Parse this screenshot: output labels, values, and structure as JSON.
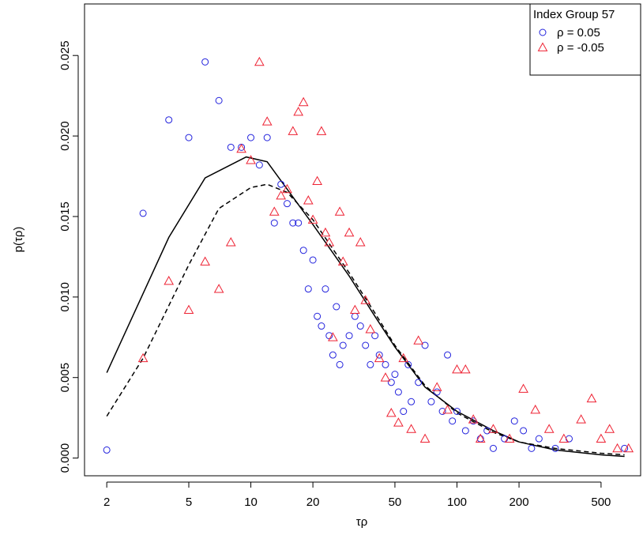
{
  "chart_data": {
    "type": "scatter",
    "x_label": "τρ",
    "y_label": "p(τρ)",
    "xscale": "log",
    "xlim": [
      1.56,
      778
    ],
    "ylim": [
      -0.0011,
      0.0282
    ],
    "xticks": [
      2,
      5,
      10,
      20,
      50,
      100,
      200,
      500
    ],
    "yticks": [
      {
        "value": 0,
        "label": "0.000"
      },
      {
        "value": 0.005,
        "label": "0.005"
      },
      {
        "value": 0.01,
        "label": "0.010"
      },
      {
        "value": 0.015,
        "label": "0.015"
      },
      {
        "value": 0.02,
        "label": "0.020"
      },
      {
        "value": 0.025,
        "label": "0.025"
      }
    ],
    "legend_title": "Index Group 57",
    "legend_position": "top-right",
    "series": [
      {
        "name": "ρ = 0.05",
        "color": "#2222dd",
        "marker": "circle",
        "x": [
          2,
          3,
          4,
          5,
          6,
          7,
          8,
          9,
          10,
          11,
          12,
          13,
          14,
          15,
          16,
          17,
          18,
          19,
          20,
          21,
          22,
          23,
          24,
          25,
          26,
          27,
          28,
          30,
          32,
          34,
          36,
          38,
          40,
          42,
          45,
          48,
          50,
          52,
          55,
          58,
          60,
          65,
          70,
          75,
          80,
          85,
          90,
          95,
          100,
          110,
          120,
          130,
          140,
          150,
          170,
          190,
          210,
          230,
          250,
          300,
          350,
          650
        ],
        "values": [
          0.0005,
          0.0152,
          0.021,
          0.0199,
          0.0246,
          0.0222,
          0.0193,
          0.0193,
          0.0199,
          0.0182,
          0.0199,
          0.0146,
          0.017,
          0.0158,
          0.0146,
          0.0146,
          0.0129,
          0.0105,
          0.0123,
          0.0088,
          0.0082,
          0.0105,
          0.0076,
          0.0064,
          0.0094,
          0.0058,
          0.007,
          0.0076,
          0.0088,
          0.0082,
          0.007,
          0.0058,
          0.0076,
          0.0064,
          0.0058,
          0.0047,
          0.0052,
          0.0041,
          0.0029,
          0.0058,
          0.0035,
          0.0047,
          0.007,
          0.0035,
          0.0041,
          0.0029,
          0.0064,
          0.0023,
          0.0029,
          0.0017,
          0.0023,
          0.0012,
          0.0017,
          0.0006,
          0.0012,
          0.0023,
          0.0017,
          0.0006,
          0.0012,
          0.0006,
          0.0012,
          0.0006
        ]
      },
      {
        "name": "ρ = -0.05",
        "color": "#ee2233",
        "marker": "triangle",
        "x": [
          3,
          4,
          5,
          6,
          7,
          8,
          9,
          10,
          11,
          12,
          13,
          14,
          15,
          16,
          17,
          18,
          19,
          20,
          21,
          22,
          23,
          24,
          25,
          27,
          28,
          30,
          32,
          34,
          36,
          38,
          42,
          45,
          48,
          52,
          55,
          60,
          65,
          70,
          80,
          90,
          100,
          110,
          120,
          130,
          150,
          180,
          210,
          240,
          280,
          330,
          400,
          450,
          500,
          550,
          600,
          680
        ],
        "values": [
          0.0062,
          0.011,
          0.0092,
          0.0122,
          0.0105,
          0.0134,
          0.0192,
          0.0185,
          0.0246,
          0.0209,
          0.0153,
          0.0163,
          0.0167,
          0.0203,
          0.0215,
          0.0221,
          0.016,
          0.0148,
          0.0172,
          0.0203,
          0.014,
          0.0134,
          0.0075,
          0.0153,
          0.0122,
          0.014,
          0.0092,
          0.0134,
          0.0098,
          0.008,
          0.0062,
          0.005,
          0.0028,
          0.0022,
          0.0062,
          0.0018,
          0.0073,
          0.0012,
          0.0044,
          0.003,
          0.0055,
          0.0055,
          0.0024,
          0.0012,
          0.0018,
          0.0012,
          0.0043,
          0.003,
          0.0018,
          0.0012,
          0.0024,
          0.0037,
          0.0012,
          0.0018,
          0.0006,
          0.0006
        ]
      }
    ],
    "fits": [
      {
        "style": "solid",
        "color": "#000000",
        "x": [
          2,
          4,
          6,
          9.5,
          12,
          15,
          20,
          30,
          40,
          50,
          70,
          100,
          150,
          200,
          300,
          500,
          650
        ],
        "values": [
          0.0053,
          0.0137,
          0.0174,
          0.0187,
          0.0184,
          0.0167,
          0.0145,
          0.0113,
          0.0088,
          0.0069,
          0.0044,
          0.0029,
          0.0017,
          0.001,
          0.0005,
          0.0002,
          0.0001
        ]
      },
      {
        "style": "dashed",
        "color": "#000000",
        "x": [
          2,
          3,
          5,
          7,
          10,
          12,
          15,
          20,
          30,
          40,
          50,
          70,
          100,
          150,
          200,
          300,
          500,
          650
        ],
        "values": [
          0.0026,
          0.0062,
          0.012,
          0.0155,
          0.0168,
          0.017,
          0.0165,
          0.0148,
          0.0115,
          0.009,
          0.007,
          0.0045,
          0.0028,
          0.0016,
          0.001,
          0.0006,
          0.0003,
          0.0002
        ]
      }
    ]
  }
}
